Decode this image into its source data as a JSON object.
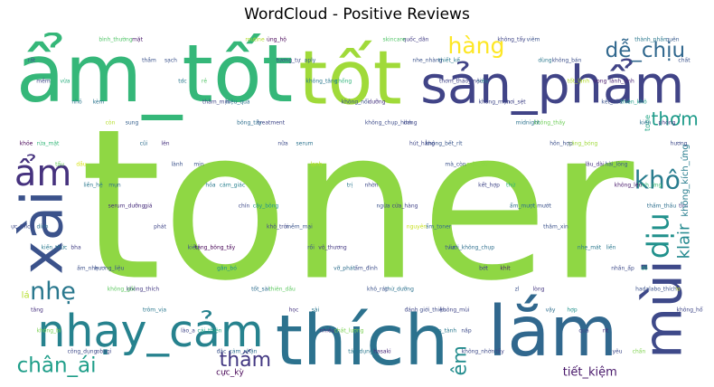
{
  "chart_data": {
    "type": "wordcloud",
    "title": "WordCloud - Positive Reviews",
    "words": [
      {
        "text": "toner",
        "weight": 100,
        "color": "#8fd744"
      },
      {
        "text": "tốt",
        "weight": 96,
        "color": "#a0da39"
      },
      {
        "text": "xài",
        "weight": 90,
        "color": "#3b528b"
      },
      {
        "text": "thích",
        "weight": 62,
        "color": "#2c728e"
      },
      {
        "text": "ẩm_tốt",
        "weight": 55,
        "color": "#35b779"
      },
      {
        "text": "sản_phẩm",
        "weight": 38,
        "color": "#414487"
      },
      {
        "text": "nhạy_cảm",
        "weight": 30,
        "color": "#26828e"
      },
      {
        "text": "lắm",
        "weight": 32,
        "color": "#31688e"
      },
      {
        "text": "hàng",
        "weight": 28,
        "color": "#fde725"
      },
      {
        "text": "mùi",
        "weight": 28,
        "color": "#3e4989"
      },
      {
        "text": "ẩm",
        "weight": 30,
        "color": "#46327e"
      },
      {
        "text": "dễ_chịu",
        "weight": 26,
        "color": "#31688e"
      },
      {
        "text": "không_mùi",
        "weight": 24,
        "color": "#404688"
      },
      {
        "text": "chân_ái",
        "weight": 26,
        "color": "#1f9e89"
      },
      {
        "text": "khô",
        "weight": 24,
        "color": "#287c8e"
      },
      {
        "text": "dịu",
        "weight": 22,
        "color": "#21918c"
      },
      {
        "text": "lành_tính",
        "weight": 20,
        "color": "#482576"
      },
      {
        "text": "klair",
        "weight": 19,
        "color": "#23898e"
      },
      {
        "text": "nhẹ",
        "weight": 22,
        "color": "#2a788e"
      },
      {
        "text": "thấm",
        "weight": 22,
        "color": "#443983"
      },
      {
        "text": "thơm",
        "weight": 20,
        "color": "#1e9b8a"
      },
      {
        "text": "rửa_mặt",
        "weight": 18,
        "color": "#35b779"
      },
      {
        "text": "dầu",
        "weight": 17,
        "color": "#d8e219"
      },
      {
        "text": "mụn",
        "weight": 16,
        "color": "#2f6c8e"
      },
      {
        "text": "giá",
        "weight": 16,
        "color": "#472d7b"
      },
      {
        "text": "êm",
        "weight": 15,
        "color": "#228c8d"
      },
      {
        "text": "tặng_bông_tẩy",
        "weight": 11,
        "color": "#440154"
      },
      {
        "text": "tiết_kiệm",
        "weight": 10,
        "color": "#48186a"
      },
      {
        "text": "thiên_dầu",
        "weight": 10,
        "color": "#5ec962"
      },
      {
        "text": "chất_lượng",
        "weight": 9,
        "color": "#7ad151"
      },
      {
        "text": "hasaki",
        "weight": 9,
        "color": "#482878"
      },
      {
        "text": "quốc_dân",
        "weight": 9,
        "color": "#433e85"
      },
      {
        "text": "thiết_kế",
        "weight": 9,
        "color": "#29798e"
      },
      {
        "text": "sài",
        "weight": 10,
        "color": "#2a768e"
      },
      {
        "text": "siêu",
        "weight": 9,
        "color": "#25858e"
      },
      {
        "text": "hơi_sệt",
        "weight": 9,
        "color": "#404387"
      },
      {
        "text": "không_thấy",
        "weight": 9,
        "color": "#6ece58"
      },
      {
        "text": "căng_bóng",
        "weight": 9,
        "color": "#9fda3a"
      },
      {
        "text": "hài_lòng",
        "weight": 9,
        "color": "#38588c"
      },
      {
        "text": "kích_ứng",
        "weight": 9,
        "color": "#3bbb75"
      },
      {
        "text": "tím",
        "weight": 9,
        "color": "#453781"
      },
      {
        "text": "hương_liệu",
        "weight": 8,
        "color": "#3b528b"
      },
      {
        "text": "không_thích",
        "weight": 8,
        "color": "#443a83"
      },
      {
        "text": "dính",
        "weight": 9,
        "color": "#2d708e"
      },
      {
        "text": "bha",
        "weight": 9,
        "color": "#423f85"
      },
      {
        "text": "không_kích_ứng",
        "weight": 8,
        "color": "#287d8e"
      },
      {
        "text": "cải_thiện",
        "weight": 8,
        "color": "#22a785"
      },
      {
        "text": "cảm_nhận",
        "weight": 8,
        "color": "#2e6e8e"
      },
      {
        "text": "ủng_hộ",
        "weight": 8,
        "color": "#440154"
      },
      {
        "text": "dưỡng",
        "weight": 7,
        "color": "#46337f"
      },
      {
        "text": "aply",
        "weight": 8,
        "color": "#34618d"
      },
      {
        "text": "dang",
        "weight": 7,
        "color": "#3f4889"
      },
      {
        "text": "không_bết_rít",
        "weight": 7,
        "color": "#39568c"
      },
      {
        "text": "mặc_dù",
        "weight": 7,
        "color": "#8bd646"
      },
      {
        "text": "thử",
        "weight": 7,
        "color": "#2db27d"
      },
      {
        "text": "mướt",
        "weight": 7,
        "color": "#3b528b"
      },
      {
        "text": "lá",
        "weight": 7,
        "color": "#b5de2b"
      },
      {
        "text": "liền",
        "weight": 7,
        "color": "#2a778e"
      },
      {
        "text": "đồ",
        "weight": 7,
        "color": "#25ab82"
      },
      {
        "text": "lo",
        "weight": 7,
        "color": "#cde11d"
      },
      {
        "text": "chống",
        "weight": 8,
        "color": "#31b57b"
      },
      {
        "text": "tăng",
        "weight": 7,
        "color": "#46307e"
      },
      {
        "text": "cực_kỳ",
        "weight": 6,
        "color": "#440154"
      },
      {
        "text": "obagi",
        "weight": 6,
        "color": "#3e4a89"
      },
      {
        "text": "mặt",
        "weight": 6,
        "color": "#48186a"
      },
      {
        "text": "sạch",
        "weight": 6,
        "color": "#3b528b"
      },
      {
        "text": "hiệu_quả",
        "weight": 5,
        "color": "#2d718e"
      },
      {
        "text": "treatment",
        "weight": 5,
        "color": "#3f4788"
      },
      {
        "text": "serum",
        "weight": 5,
        "color": "#2c738e"
      },
      {
        "text": "tone",
        "weight": 5,
        "color": "#21a585"
      },
      {
        "text": "rẻ",
        "weight": 6,
        "color": "#54c568"
      },
      {
        "text": "nhờn",
        "weight": 5,
        "color": "#3e4989"
      },
      {
        "text": "cửa_hàng",
        "weight": 5,
        "color": "#414287"
      },
      {
        "text": "ẩm_toner",
        "weight": 5,
        "color": "#31688e"
      },
      {
        "text": "lưới_không_chụp",
        "weight": 4,
        "color": "#2e6f8e"
      },
      {
        "text": "khít",
        "weight": 4,
        "color": "#481b6d"
      },
      {
        "text": "lòng",
        "weight": 4,
        "color": "#453882"
      },
      {
        "text": "hợp",
        "weight": 4,
        "color": "#20928c"
      },
      {
        "text": "rít",
        "weight": 4,
        "color": "#472c7a"
      },
      {
        "text": "chẩn",
        "weight": 4,
        "color": "#7fd34e"
      },
      {
        "text": "quên",
        "weight": 4,
        "color": "#375a8c"
      },
      {
        "text": "rất",
        "weight": 4,
        "color": "#3a548c"
      },
      {
        "text": "vừa",
        "weight": 4,
        "color": "#29af7f"
      },
      {
        "text": "kèm",
        "weight": 4,
        "color": "#2b758e"
      },
      {
        "text": "sung",
        "weight": 4,
        "color": "#35608d"
      },
      {
        "text": "lên",
        "weight": 4,
        "color": "#46327e"
      },
      {
        "text": "mịn",
        "weight": 4,
        "color": "#39558c"
      },
      {
        "text": "cảm_giác",
        "weight": 4,
        "color": "#27808e"
      },
      {
        "text": "cây_bông",
        "weight": 4,
        "color": "#20938c"
      },
      {
        "text": "mềm_mại",
        "weight": 4,
        "color": "#3a548c"
      },
      {
        "text": "vô_thương",
        "weight": 4,
        "color": "#443983"
      },
      {
        "text": "ẩm_đỉnh",
        "weight": 4,
        "color": "#3d4d8a"
      },
      {
        "text": "thử_dưỡng",
        "weight": 4,
        "color": "#2c728e"
      },
      {
        "text": "không_bán",
        "weight": 3,
        "color": "#3c4f8a"
      },
      {
        "text": "vong",
        "weight": 3,
        "color": "#48196b"
      },
      {
        "text": "giới_thiệu",
        "weight": 4,
        "color": "#3e4c8a"
      },
      {
        "text": "thiên_khô",
        "weight": 3,
        "color": "#1f9e89"
      },
      {
        "text": "phòng",
        "weight": 3,
        "color": "#443a83"
      },
      {
        "text": "khỏe",
        "weight": 3,
        "color": "#440154"
      },
      {
        "text": "tẩu",
        "weight": 3,
        "color": "#6ccd5a"
      },
      {
        "text": "liền_hệ",
        "weight": 3,
        "color": "#2a788e"
      },
      {
        "text": "serum_dưỡng",
        "weight": 3,
        "color": "#472e7c"
      },
      {
        "text": "phát",
        "weight": 3,
        "color": "#404688"
      },
      {
        "text": "kiểu",
        "weight": 3,
        "color": "#3b528b"
      },
      {
        "text": "gắn_bó",
        "weight": 3,
        "color": "#218f8d"
      },
      {
        "text": "tốt_sài",
        "weight": 3,
        "color": "#2e6e8e"
      },
      {
        "text": "học",
        "weight": 3,
        "color": "#453581"
      },
      {
        "text": "nhiều",
        "weight": 3,
        "color": "#46307e"
      },
      {
        "text": "tác_dụng",
        "weight": 3,
        "color": "#2a788e"
      },
      {
        "text": "skincare",
        "weight": 3,
        "color": "#52c569"
      },
      {
        "text": "nhe_nhàng",
        "weight": 3,
        "color": "#3b528b"
      },
      {
        "text": "thơm_thảo_mộc",
        "weight": 3,
        "color": "#404387"
      },
      {
        "text": "không_mụn",
        "weight": 3,
        "color": "#3f4889"
      },
      {
        "text": "midnight",
        "weight": 3,
        "color": "#2c728e"
      },
      {
        "text": "hõn_hợp",
        "weight": 3,
        "color": "#3c508b"
      },
      {
        "text": "lâu_dài",
        "weight": 3,
        "color": "#46337f"
      },
      {
        "text": "không_lên",
        "weight": 3,
        "color": "#48196b"
      },
      {
        "text": "thấm_thấu",
        "weight": 3,
        "color": "#2e6f8e"
      },
      {
        "text": "cực_thích",
        "weight": 3,
        "color": "#3e4a89"
      },
      {
        "text": "kiến_thức",
        "weight": 3,
        "color": "#2a788e"
      },
      {
        "text": "ấm_nhẹ",
        "weight": 3,
        "color": "#3c4f8a"
      },
      {
        "text": "không_gồi",
        "weight": 3,
        "color": "#5ec962"
      },
      {
        "text": "trôm_vịa",
        "weight": 3,
        "color": "#2a788e"
      },
      {
        "text": "lào_a",
        "weight": 3,
        "color": "#404688"
      },
      {
        "text": "đặc",
        "weight": 3,
        "color": "#3b528b"
      },
      {
        "text": "routine",
        "weight": 3,
        "color": "#b2dd2d"
      },
      {
        "text": "tương_tự",
        "weight": 3,
        "color": "#3e4a89"
      },
      {
        "text": "nắp",
        "weight": 4,
        "color": "#3e4c8a"
      },
      {
        "text": "tẩy",
        "weight": 4,
        "color": "#414487"
      },
      {
        "text": "không_tăng",
        "weight": 3,
        "color": "#2a788e"
      },
      {
        "text": "không_nổi",
        "weight": 3,
        "color": "#3b528b"
      },
      {
        "text": "không_chụp_hình",
        "weight": 3,
        "color": "#3e4c8a"
      },
      {
        "text": "hút_hẳng",
        "weight": 3,
        "color": "#3f4788"
      },
      {
        "text": "mà_còn",
        "weight": 3,
        "color": "#3b528b"
      },
      {
        "text": "kết_hợp",
        "weight": 3,
        "color": "#404688"
      },
      {
        "text": "ẩm_mượt",
        "weight": 3,
        "color": "#2e6e8e"
      },
      {
        "text": "thâm_xỉn",
        "weight": 3,
        "color": "#3b528b"
      },
      {
        "text": "nhẹ_mát",
        "weight": 3,
        "color": "#2a788e"
      },
      {
        "text": "nhấn_ẩp",
        "weight": 3,
        "color": "#3e4a89"
      },
      {
        "text": "hadalabo_thích",
        "weight": 3,
        "color": "#3b528b"
      },
      {
        "text": "không_hổ",
        "weight": 3,
        "color": "#3f4788"
      },
      {
        "text": "không_bí",
        "weight": 3,
        "color": "#7ad151"
      },
      {
        "text": "công_dụng",
        "weight": 3,
        "color": "#3e4a89"
      },
      {
        "text": "bình_thường",
        "weight": 3,
        "color": "#52c569"
      },
      {
        "text": "thầm",
        "weight": 3,
        "color": "#3b528b"
      },
      {
        "text": "tdc",
        "weight": 3,
        "color": "#2a788e"
      },
      {
        "text": "thâm_mịn",
        "weight": 3,
        "color": "#404688"
      },
      {
        "text": "bông_tẩy",
        "weight": 3,
        "color": "#2e6e8e"
      },
      {
        "text": "nữa",
        "weight": 3,
        "color": "#3e4c8a"
      },
      {
        "text": "lạnh",
        "weight": 3,
        "color": "#b5de2b"
      },
      {
        "text": "trị",
        "weight": 3,
        "color": "#2a788e"
      },
      {
        "text": "ngừa",
        "weight": 3,
        "color": "#3b528b"
      },
      {
        "text": "nguyên",
        "weight": 3,
        "color": "#c8e020"
      },
      {
        "text": "tvia",
        "weight": 3,
        "color": "#3b528b"
      },
      {
        "text": "bớt",
        "weight": 3,
        "color": "#414487"
      },
      {
        "text": "zl",
        "weight": 3,
        "color": "#3b528b"
      },
      {
        "text": "vậy",
        "weight": 3,
        "color": "#2e6e8e"
      },
      {
        "text": "quả",
        "weight": 3,
        "color": "#404688"
      },
      {
        "text": "yêu",
        "weight": 3,
        "color": "#3e4a89"
      },
      {
        "text": "thành_phần",
        "weight": 3,
        "color": "#2a788e"
      },
      {
        "text": "chất",
        "weight": 3,
        "color": "#3b528b"
      },
      {
        "text": "mềm",
        "weight": 3,
        "color": "#3f4788"
      },
      {
        "text": "nhỏ",
        "weight": 3,
        "color": "#2a788e"
      },
      {
        "text": "còn",
        "weight": 3,
        "color": "#b5de2b"
      },
      {
        "text": "cũi",
        "weight": 3,
        "color": "#2e6e8e"
      },
      {
        "text": "lành",
        "weight": 3,
        "color": "#3b528b"
      },
      {
        "text": "hỏa",
        "weight": 3,
        "color": "#2a788e"
      },
      {
        "text": "chín",
        "weight": 3,
        "color": "#3e4a89"
      },
      {
        "text": "khô_trôi",
        "weight": 3,
        "color": "#404688"
      },
      {
        "text": "rồi",
        "weight": 3,
        "color": "#3b528b"
      },
      {
        "text": "vỡ_phát",
        "weight": 3,
        "color": "#2e6e8e"
      },
      {
        "text": "khô_ráp",
        "weight": 3,
        "color": "#3b528b"
      },
      {
        "text": "đánh",
        "weight": 3,
        "color": "#3f4788"
      },
      {
        "text": "tập_tành",
        "weight": 3,
        "color": "#2a788e"
      },
      {
        "text": "viêm",
        "weight": 4,
        "color": "#3b528b"
      },
      {
        "text": "không_nhờn",
        "weight": 3,
        "color": "#3e4a89"
      },
      {
        "text": "không_tẩy",
        "weight": 3,
        "color": "#404688"
      },
      {
        "text": "dùng",
        "weight": 3,
        "color": "#2a788e"
      },
      {
        "text": "tốt_lành",
        "weight": 3,
        "color": "#b5de2b"
      },
      {
        "text": "kết_cấu",
        "weight": 3,
        "color": "#3b528b"
      },
      {
        "text": "kiên",
        "weight": 3,
        "color": "#2e6e8e"
      },
      {
        "text": "hương",
        "weight": 3,
        "color": "#3e4a89"
      }
    ]
  }
}
